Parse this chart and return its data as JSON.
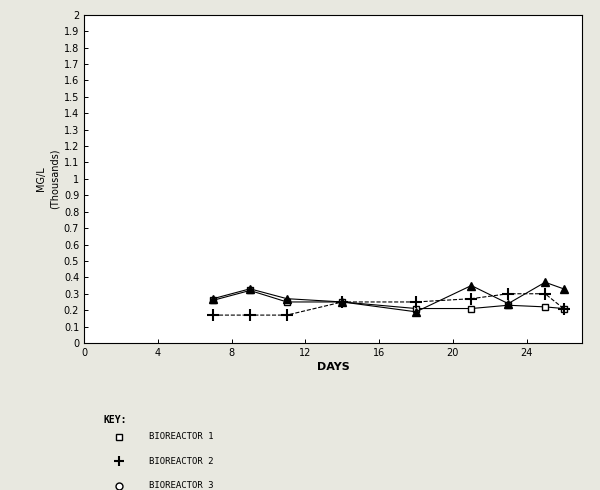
{
  "xlabel": "DAYS",
  "ylabel": "MG/L\n(Thousands)",
  "xlim": [
    0,
    27
  ],
  "ylim": [
    0,
    2.0
  ],
  "yticks": [
    0,
    0.1,
    0.2,
    0.3,
    0.4,
    0.5,
    0.6,
    0.7,
    0.8,
    0.9,
    1.0,
    1.1,
    1.2,
    1.3,
    1.4,
    1.5,
    1.6,
    1.7,
    1.8,
    1.9,
    2.0
  ],
  "ytick_labels": [
    "0",
    "0.1",
    "0.2",
    "0.3",
    "0.4",
    "0.5",
    "0.6",
    "0.7",
    "0.8",
    "0.9",
    "1",
    "1.1",
    "1.2",
    "1.3",
    "1.4",
    "1.5",
    "1.6",
    "1.7",
    "1.8",
    "1.9",
    "2"
  ],
  "xticks": [
    0,
    4,
    8,
    12,
    16,
    20,
    24
  ],
  "bioreactor1": {
    "days": [
      7,
      9,
      11,
      14,
      18,
      21,
      23,
      25,
      26
    ],
    "values": [
      0.26,
      0.32,
      0.25,
      0.25,
      0.21,
      0.21,
      0.23,
      0.22,
      0.21
    ],
    "marker": "s",
    "label": "BIOREACTOR 1",
    "linestyle": "-"
  },
  "bioreactor2": {
    "days": [
      7,
      9,
      11,
      14,
      18,
      21,
      23,
      25,
      26
    ],
    "values": [
      0.17,
      0.17,
      0.17,
      0.25,
      0.25,
      0.27,
      0.3,
      0.3,
      0.21
    ],
    "marker": "+",
    "label": "BIOREACTOR 2",
    "linestyle": "--"
  },
  "bioreactor3": {
    "days": [
      7,
      9,
      11,
      14,
      18,
      21,
      23,
      25,
      26
    ],
    "values": [
      0.27,
      0.33,
      0.27,
      0.25,
      0.19,
      0.35,
      0.24,
      0.37,
      0.33
    ],
    "marker": "^",
    "label": "BIOREACTOR 3",
    "linestyle": "-"
  },
  "key_label": "KEY:",
  "bg_color": "#e8e8e0",
  "plot_bg_color": "#ffffff"
}
